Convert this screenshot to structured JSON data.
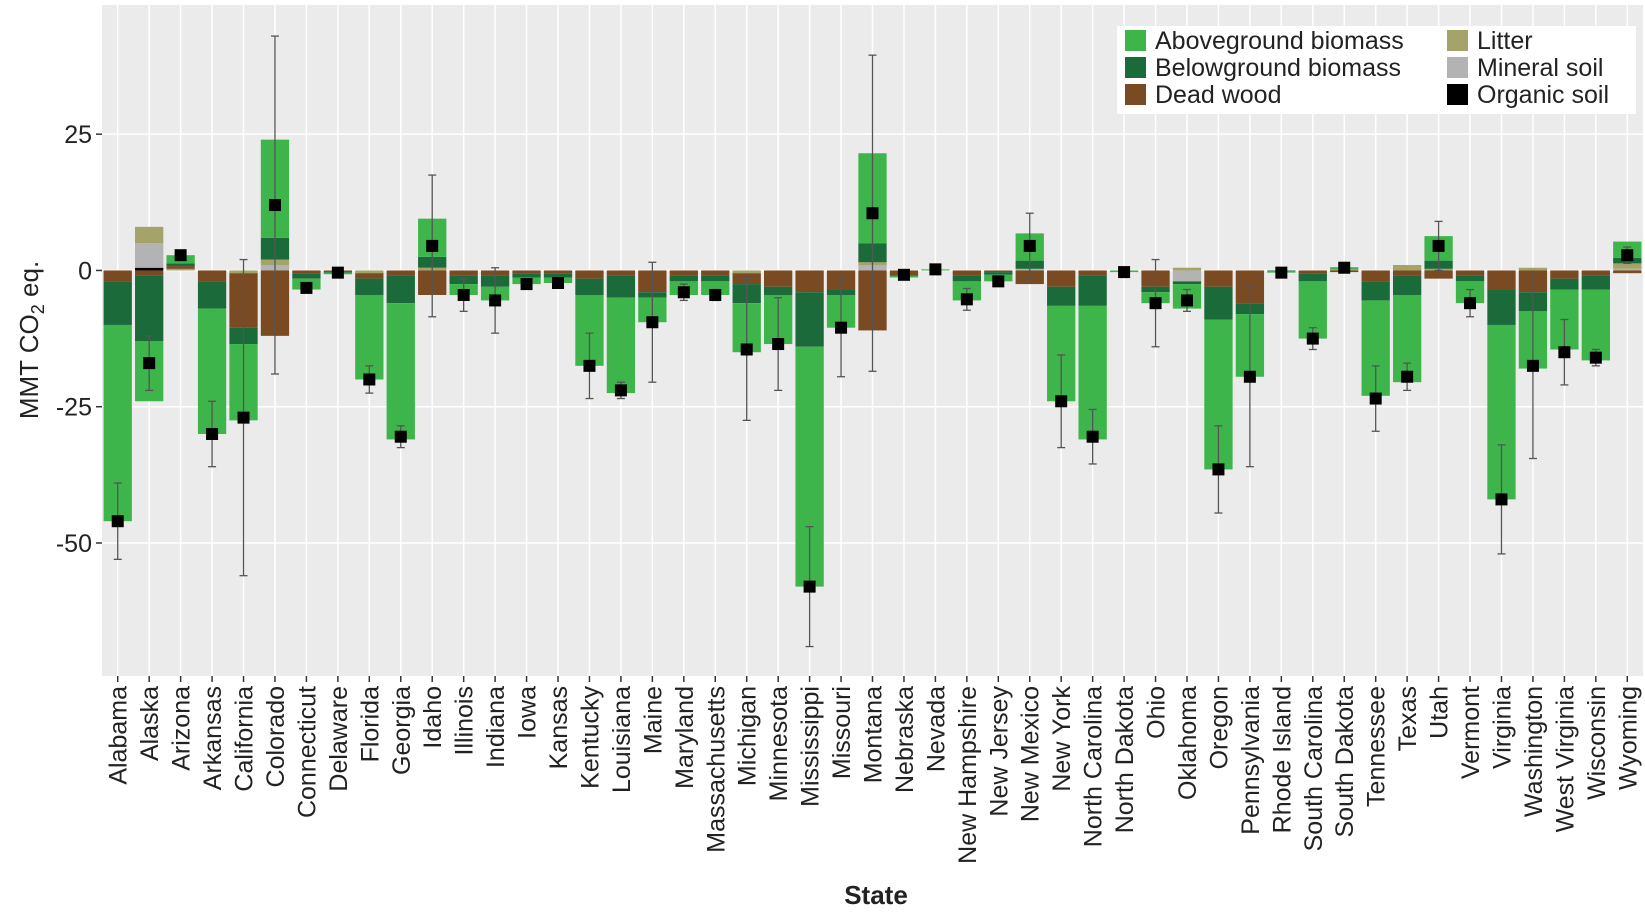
{
  "chart_data": {
    "type": "bar",
    "stacked": true,
    "x_label": "State",
    "y_label_parts": [
      "MMT CO",
      "2",
      " eq."
    ],
    "ylim": [
      -74.4,
      48.7
    ],
    "yticks": [
      -50,
      -25,
      0,
      25
    ],
    "grid": true,
    "legend_position": "top-right",
    "categories": [
      "Alabama",
      "Alaska",
      "Arizona",
      "Arkansas",
      "California",
      "Colorado",
      "Connecticut",
      "Delaware",
      "Florida",
      "Georgia",
      "Idaho",
      "Illinois",
      "Indiana",
      "Iowa",
      "Kansas",
      "Kentucky",
      "Louisiana",
      "Maine",
      "Maryland",
      "Massachusetts",
      "Michigan",
      "Minnesota",
      "Mississippi",
      "Missouri",
      "Montana",
      "Nebraska",
      "Nevada",
      "New Hampshire",
      "New Jersey",
      "New Mexico",
      "New York",
      "North Carolina",
      "North Dakota",
      "Ohio",
      "Oklahoma",
      "Oregon",
      "Pennsylvania",
      "Rhode Island",
      "South Carolina",
      "South Dakota",
      "Tennessee",
      "Texas",
      "Utah",
      "Vermont",
      "Virginia",
      "Washington",
      "West Virginia",
      "Wisconsin",
      "Wyoming"
    ],
    "series": [
      {
        "name": "Aboveground biomass",
        "color": "#3db54a",
        "values": [
          -36,
          -11,
          1.5,
          -23,
          -14,
          18,
          -2,
          -0.3,
          -15.5,
          -25,
          7,
          -2,
          -2.5,
          -1.2,
          -1,
          -13,
          -17.5,
          -4.5,
          -2.5,
          -2.5,
          -9,
          -9,
          -44,
          -6,
          16.5,
          -0.3,
          0.2,
          -3.5,
          -1.2,
          5,
          -17.5,
          -24.5,
          -0.3,
          -2,
          -4.5,
          -27.5,
          -11.5,
          -0.3,
          -10.5,
          0.4,
          -17.5,
          -16,
          4.5,
          -4,
          -32,
          -10.5,
          -11,
          -13,
          3
        ]
      },
      {
        "name": "Belowground biomass",
        "color": "#1b6b3a",
        "values": [
          -8,
          -12,
          0.5,
          -5,
          -3,
          4,
          -1,
          -0.2,
          -3,
          -5,
          2,
          -1.5,
          -2,
          -0.8,
          -0.8,
          -3,
          -4,
          -1,
          -1,
          -1,
          -3.5,
          -1.5,
          -10,
          -1,
          3.5,
          0,
          0,
          -1,
          -0.5,
          1.5,
          -3.5,
          -5.5,
          0,
          -1,
          -0.5,
          -6,
          -2,
          -0.1,
          -1.5,
          0,
          -3.5,
          -3.5,
          1.5,
          -1,
          -6.5,
          -3.5,
          -2,
          -2.5,
          1
        ]
      },
      {
        "name": "Dead wood",
        "color": "#7a4a22",
        "values": [
          -2,
          -1,
          0.5,
          -2,
          -10,
          -12,
          -0.5,
          -0.2,
          -1,
          -1,
          -4.5,
          -1,
          -1,
          -0.5,
          -0.5,
          -1.5,
          -1,
          -4,
          -1,
          -1,
          -2,
          -3,
          -4,
          -3.5,
          -11,
          -1,
          0,
          -1,
          -0.3,
          -2.5,
          -3,
          -1,
          0,
          -3,
          0,
          -3,
          -6,
          0,
          -0.5,
          -0.3,
          -2,
          -1,
          -1.5,
          -1,
          -3.5,
          -4,
          -1.5,
          -1,
          -0.5
        ]
      },
      {
        "name": "Litter",
        "color": "#a3a36a",
        "values": [
          0,
          3,
          0.3,
          0,
          -0.5,
          1,
          0,
          0,
          -0.5,
          0,
          0.5,
          0,
          0,
          0,
          0,
          0,
          0,
          0,
          0,
          0,
          -0.5,
          0,
          0,
          0,
          0.5,
          0,
          0,
          0,
          0,
          0,
          0,
          0,
          0,
          0,
          0.5,
          0,
          0,
          0,
          0,
          0.2,
          0,
          1,
          0.3,
          0,
          0,
          0.5,
          0,
          0,
          1
        ]
      },
      {
        "name": "Mineral soil",
        "color": "#b3b3b3",
        "values": [
          0,
          4.5,
          0,
          0,
          0,
          1,
          0,
          0,
          0,
          0,
          0,
          0,
          0,
          0,
          0,
          0,
          0,
          0,
          0,
          0,
          0,
          0,
          0,
          0,
          1,
          0,
          0,
          0,
          0,
          0.3,
          0,
          0,
          0,
          0,
          -2,
          0,
          0,
          0,
          0,
          0,
          0,
          0,
          0,
          0,
          0,
          0,
          0,
          0,
          0.3
        ]
      },
      {
        "name": "Organic soil",
        "color": "#000000",
        "values": [
          0,
          0.5,
          0,
          0,
          0,
          0,
          0,
          0,
          0,
          0,
          0,
          0,
          0,
          0,
          0,
          0,
          0,
          0,
          0,
          0,
          0,
          0,
          0,
          0,
          0,
          0,
          0,
          0,
          0,
          0,
          0,
          0,
          0,
          0,
          0,
          0,
          0,
          0,
          0,
          0,
          0,
          0,
          0,
          0,
          0,
          0,
          0,
          0,
          0
        ]
      }
    ],
    "net": [
      -46,
      -17,
      2.8,
      -30,
      -27,
      12,
      -3.2,
      -0.4,
      -20,
      -30.5,
      4.5,
      -4.5,
      -5.5,
      -2.5,
      -2.3,
      -17.5,
      -22,
      -9.5,
      -4,
      -4.5,
      -14.5,
      -13.5,
      -58,
      -10.5,
      10.5,
      -0.8,
      0.2,
      -5.3,
      -2,
      4.5,
      -24,
      -30.5,
      -0.3,
      -6,
      -5.5,
      -36.5,
      -19.5,
      -0.4,
      -12.5,
      0.5,
      -23.5,
      -19.5,
      4.5,
      -6,
      -42,
      -17.5,
      -15,
      -16,
      2.8
    ],
    "error": [
      7,
      5,
      0.8,
      6,
      29,
      31,
      0.5,
      0.3,
      2.5,
      2,
      13,
      3,
      6,
      0.5,
      0.5,
      6,
      1.5,
      11,
      1.5,
      1,
      13,
      8.5,
      11,
      9,
      29,
      0.5,
      0.3,
      2,
      0.5,
      6,
      8.5,
      5,
      0.3,
      8,
      2,
      8,
      16.5,
      0.3,
      2,
      0.8,
      6,
      2.5,
      4.5,
      2.5,
      10,
      17,
      6,
      1.5,
      1.5
    ]
  }
}
